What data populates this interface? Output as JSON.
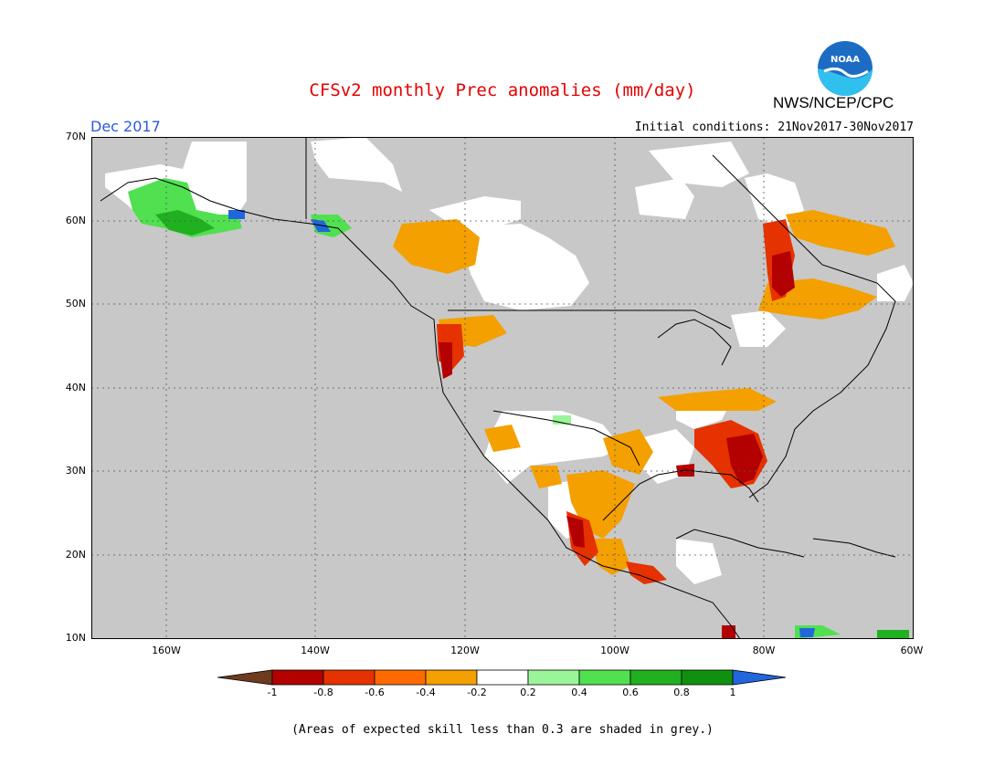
{
  "title": "CFSv2 monthly Prec anomalies (mm/day)",
  "agency": "NWS/NCEP/CPC",
  "logo_text": "NOAA",
  "valid_month": "Dec 2017",
  "init_conditions": "Initial conditions: 21Nov2017-30Nov2017",
  "footnote": "(Areas of expected skill less than 0.3 are shaded in grey.)",
  "lat_labels": [
    "70N",
    "60N",
    "50N",
    "40N",
    "30N",
    "20N",
    "10N"
  ],
  "lon_labels": [
    "160W",
    "140W",
    "120W",
    "100W",
    "80W",
    "60W"
  ],
  "colorbar": {
    "labels": [
      "-1",
      "-0.8",
      "-0.6",
      "-0.4",
      "-0.2",
      "0.2",
      "0.4",
      "0.6",
      "0.8",
      "1"
    ],
    "colors": [
      "#6e3b1f",
      "#b30000",
      "#e63200",
      "#ff6a00",
      "#f4a000",
      "#ffffff",
      "#9af59a",
      "#50e050",
      "#20b020",
      "#109010",
      "#2266dd"
    ]
  },
  "colors": {
    "grey": "#c8c8c8",
    "white": "#ffffff",
    "title": "#e60000",
    "valid": "#2a58e0"
  }
}
